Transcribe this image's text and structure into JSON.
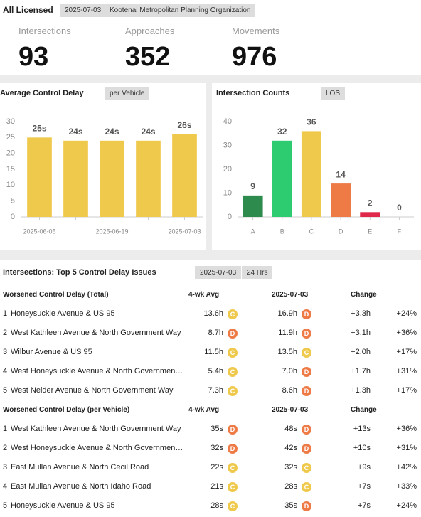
{
  "header": {
    "title": "All Licensed",
    "date": "2025-07-03",
    "region": "Kootenai Metropolitan Planning Organization"
  },
  "stats": [
    {
      "label": "Intersections",
      "value": 93
    },
    {
      "label": "Approaches",
      "value": 352
    },
    {
      "label": "Movements",
      "value": 976
    }
  ],
  "chart_data": [
    {
      "type": "bar",
      "title": "Average Control Delay",
      "option": "per Vehicle",
      "categories": [
        "2025-06-05",
        null,
        "2025-06-19",
        null,
        "2025-07-03"
      ],
      "values": [
        25,
        24,
        24,
        24,
        26
      ],
      "value_labels": [
        "25s",
        "24s",
        "24s",
        "24s",
        "26s"
      ],
      "color": "#efc94c",
      "ylim": [
        0,
        30
      ],
      "yticks": [
        0,
        5,
        10,
        15,
        20,
        25,
        30
      ],
      "grid": false
    },
    {
      "type": "bar",
      "title": "Intersection Counts",
      "option": "LOS",
      "categories": [
        "A",
        "B",
        "C",
        "D",
        "E",
        "F"
      ],
      "values": [
        9,
        32,
        36,
        14,
        2,
        0
      ],
      "colors": [
        "#2e8b4e",
        "#2ecc71",
        "#efc94c",
        "#ee7a46",
        "#e0284a",
        "#999999"
      ],
      "ylim": [
        0,
        40
      ],
      "yticks": [
        0,
        10,
        20,
        30,
        40
      ],
      "grid": false
    }
  ],
  "table": {
    "title": "Intersections: Top 5 Control Delay Issues",
    "date": "2025-07-03",
    "period": "24 Hrs",
    "sections": [
      {
        "columns": [
          "Worsened Control Delay (Total)",
          "4-wk Avg",
          "2025-07-03",
          "Change"
        ],
        "rows": [
          {
            "rank": 1,
            "name": "Honeysuckle Avenue & US 95",
            "avg": "13.6h",
            "avg_los": "C",
            "current": "16.9h",
            "current_los": "D",
            "change": "+3.3h",
            "change_pct": "+24%"
          },
          {
            "rank": 2,
            "name": "West Kathleen Avenue & North Government Way",
            "avg": "8.7h",
            "avg_los": "D",
            "current": "11.9h",
            "current_los": "D",
            "change": "+3.1h",
            "change_pct": "+36%"
          },
          {
            "rank": 3,
            "name": "Wilbur Avenue & US 95",
            "avg": "11.5h",
            "avg_los": "C",
            "current": "13.5h",
            "current_los": "C",
            "change": "+2.0h",
            "change_pct": "+17%"
          },
          {
            "rank": 4,
            "name": "West Honeysuckle Avenue & North Governmen…",
            "avg": "5.4h",
            "avg_los": "C",
            "current": "7.0h",
            "current_los": "D",
            "change": "+1.7h",
            "change_pct": "+31%"
          },
          {
            "rank": 5,
            "name": "West Neider Avenue & North Government Way",
            "avg": "7.3h",
            "avg_los": "C",
            "current": "8.6h",
            "current_los": "D",
            "change": "+1.3h",
            "change_pct": "+17%"
          }
        ]
      },
      {
        "columns": [
          "Worsened Control Delay (per Vehicle)",
          "4-wk Avg",
          "2025-07-03",
          "Change"
        ],
        "rows": [
          {
            "rank": 1,
            "name": "West Kathleen Avenue & North Government Way",
            "avg": "35s",
            "avg_los": "D",
            "current": "48s",
            "current_los": "D",
            "change": "+13s",
            "change_pct": "+36%"
          },
          {
            "rank": 2,
            "name": "West Honeysuckle Avenue & North Governmen…",
            "avg": "32s",
            "avg_los": "D",
            "current": "42s",
            "current_los": "D",
            "change": "+10s",
            "change_pct": "+31%"
          },
          {
            "rank": 3,
            "name": "East Mullan Avenue & North Cecil Road",
            "avg": "22s",
            "avg_los": "C",
            "current": "32s",
            "current_los": "C",
            "change": "+9s",
            "change_pct": "+42%"
          },
          {
            "rank": 4,
            "name": "East Mullan Avenue & North Idaho Road",
            "avg": "21s",
            "avg_los": "C",
            "current": "28s",
            "current_los": "C",
            "change": "+7s",
            "change_pct": "+33%"
          },
          {
            "rank": 5,
            "name": "Honeysuckle Avenue & US 95",
            "avg": "28s",
            "avg_los": "C",
            "current": "35s",
            "current_los": "D",
            "change": "+7s",
            "change_pct": "+24%"
          }
        ]
      }
    ]
  }
}
